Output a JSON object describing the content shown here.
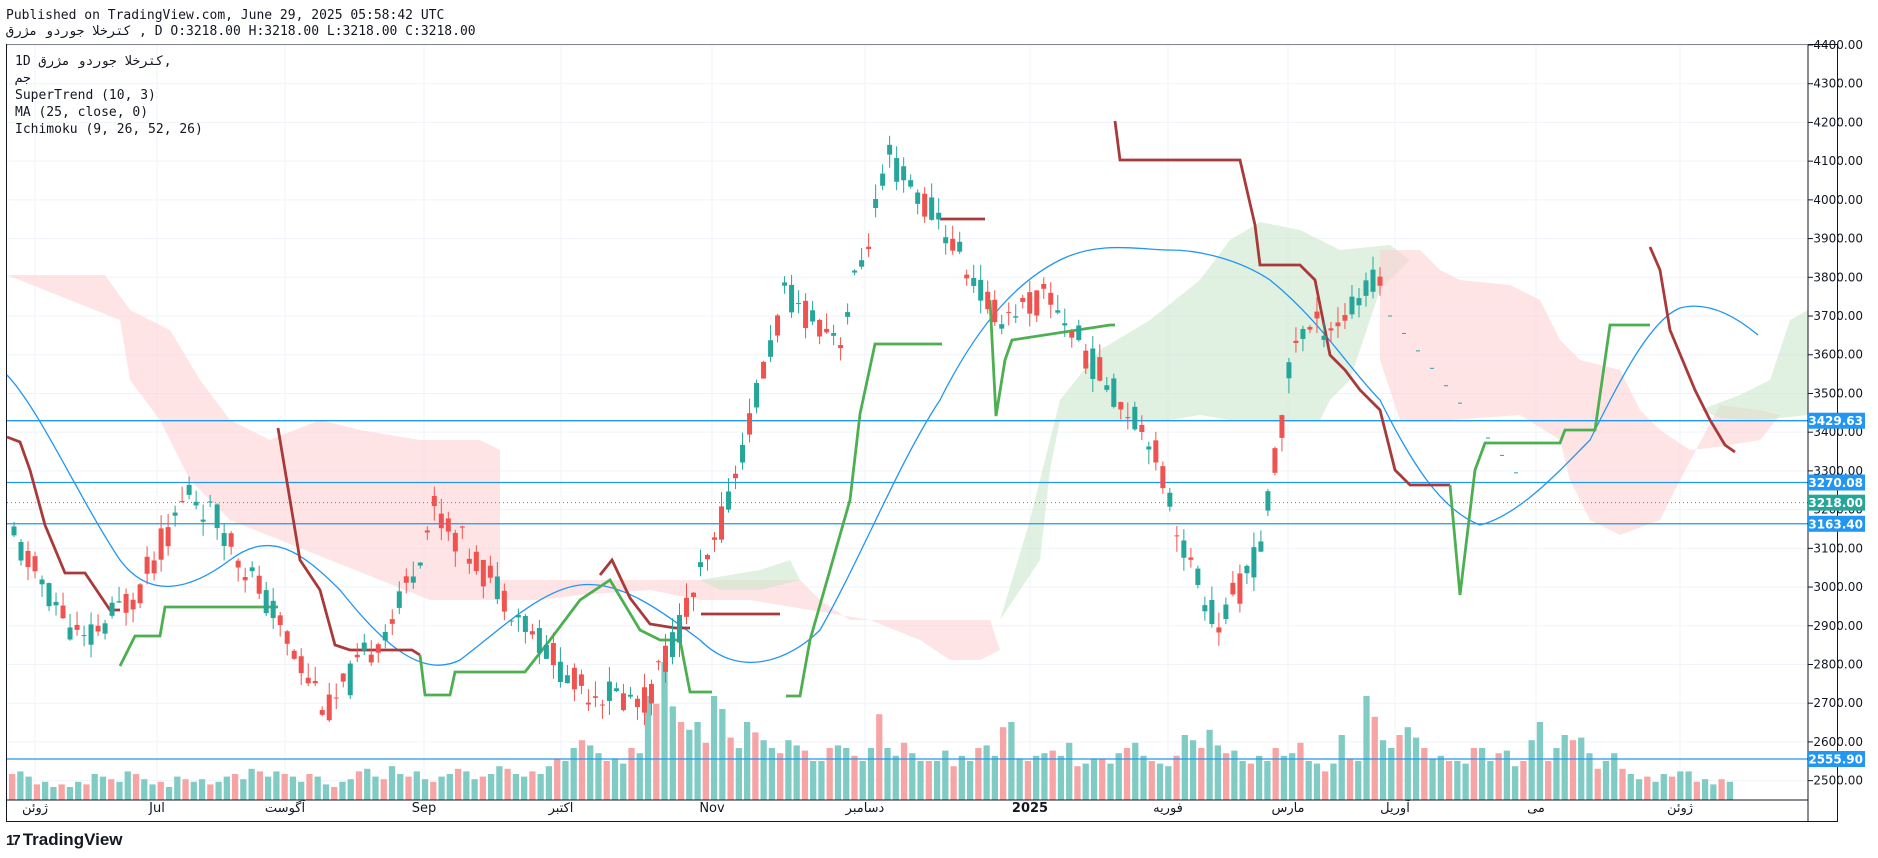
{
  "header": {
    "published": "Published on TradingView.com, June 29, 2025 05:58:42 UTC",
    "symbol_line": "کترخلا  جوردو  مژرق , D O:3218.00 H:3218.00 L:3218.00 C:3218.00"
  },
  "legend": {
    "symbol": "1D  کترخلا  جوردو  مژرق,",
    "symbol_sub": "جم",
    "indicators": [
      "SuperTrend (10, 3)",
      "MA (25, close, 0)",
      "Ichimoku (9, 26, 52, 26)"
    ]
  },
  "footer": {
    "brand": "TradingView"
  },
  "colors": {
    "up": "#26a69a",
    "down": "#ef5350",
    "ma": "#2196f3",
    "supertrend_up": "#4caf50",
    "supertrend_down": "#a93a3a",
    "cloud_bull": "#c8e6c9",
    "cloud_bear": "#ffcdd2",
    "hline": "#2196f3",
    "vol_up": "#80cbc4",
    "vol_down": "#f7a4a4"
  },
  "chart_data": {
    "type": "candlestick",
    "y_axis": {
      "range": [
        2450,
        4400
      ],
      "ticks": [
        "4400.00",
        "4300.00",
        "4200.00",
        "4100.00",
        "4000.00",
        "3900.00",
        "3800.00",
        "3700.00",
        "3600.00",
        "3500.00",
        "3400.00",
        "3300.00",
        "3200.00",
        "3100.00",
        "3000.00",
        "2900.00",
        "2800.00",
        "2700.00",
        "2600.00",
        "2500.00"
      ]
    },
    "x_axis": {
      "labels": [
        "ژوئن",
        "Jul",
        "آگوست",
        "Sep",
        "اکتبر",
        "Nov",
        "دسامبر",
        "2025",
        "فوریه",
        "مارس",
        "آوریل",
        "می",
        "ژوئن"
      ]
    },
    "price_labels": [
      {
        "value": "3429.63",
        "color": "#2196f3"
      },
      {
        "value": "3270.08",
        "color": "#2196f3"
      },
      {
        "value": "3218.00",
        "color": "#26a69a"
      },
      {
        "value": "3163.40",
        "color": "#2196f3"
      },
      {
        "value": "2555.90",
        "color": "#2196f3"
      }
    ],
    "horizontal_lines": [
      3429.63,
      3270.08,
      3163.4,
      2555.9
    ],
    "last_close": 3218.0,
    "candles": [
      {
        "o": 3070,
        "h": 3150,
        "l": 3020,
        "c": 3130
      },
      {
        "o": 3120,
        "h": 3140,
        "l": 3080,
        "c": 3100
      },
      {
        "o": 3100,
        "h": 3120,
        "l": 2990,
        "c": 3010
      },
      {
        "o": 3010,
        "h": 3030,
        "l": 2960,
        "c": 2990
      },
      {
        "o": 2990,
        "h": 3000,
        "l": 2870,
        "c": 2900
      },
      {
        "o": 2900,
        "h": 2920,
        "l": 2870,
        "c": 2890
      },
      {
        "o": 2890,
        "h": 2980,
        "l": 2870,
        "c": 2960
      },
      {
        "o": 2960,
        "h": 2980,
        "l": 2890,
        "c": 2900
      },
      {
        "o": 2900,
        "h": 2920,
        "l": 2840,
        "c": 2860
      },
      {
        "o": 2860,
        "h": 2870,
        "l": 2820,
        "c": 2830
      },
      {
        "o": 2830,
        "h": 2830,
        "l": 2800,
        "c": 2810
      },
      {
        "o": 2810,
        "h": 2810,
        "l": 2790,
        "c": 2800
      },
      {
        "o": 2800,
        "h": 2800,
        "l": 2790,
        "c": 2795
      },
      {
        "o": 2860,
        "h": 2960,
        "l": 2840,
        "c": 2940
      },
      {
        "o": 2940,
        "h": 2990,
        "l": 2920,
        "c": 2980
      },
      {
        "o": 2980,
        "h": 3020,
        "l": 2960,
        "c": 3010
      },
      {
        "o": 3010,
        "h": 3140,
        "l": 2900,
        "c": 3120
      },
      {
        "o": 3120,
        "h": 3140,
        "l": 3030,
        "c": 3050
      },
      {
        "o": 3050,
        "h": 3100,
        "l": 3020,
        "c": 3080
      },
      {
        "o": 3180,
        "h": 3300,
        "l": 3150,
        "c": 3270
      },
      {
        "o": 3270,
        "h": 3340,
        "l": 3200,
        "c": 3240
      },
      {
        "o": 3240,
        "h": 3320,
        "l": 3200,
        "c": 3220
      },
      {
        "o": 3150,
        "h": 3230,
        "l": 3100,
        "c": 3110
      },
      {
        "o": 3110,
        "h": 3160,
        "l": 3000,
        "c": 3020
      },
      {
        "o": 3100,
        "h": 3220,
        "l": 3080,
        "c": 3180
      },
      {
        "o": 3180,
        "h": 3300,
        "l": 3160,
        "c": 3280
      },
      {
        "o": 3280,
        "h": 3330,
        "l": 3170,
        "c": 3200
      },
      {
        "o": 3200,
        "h": 3290,
        "l": 3150,
        "c": 3230
      },
      {
        "o": 3230,
        "h": 3300,
        "l": 3150,
        "c": 3180
      },
      {
        "o": 3260,
        "h": 3300,
        "l": 3160,
        "c": 3170
      },
      {
        "o": 3170,
        "h": 3250,
        "l": 3150,
        "c": 3200
      },
      {
        "o": 3200,
        "h": 3280,
        "l": 3180,
        "c": 3260
      },
      {
        "o": 3260,
        "h": 3270,
        "l": 3120,
        "c": 3130
      },
      {
        "o": 3130,
        "h": 3180,
        "l": 3080,
        "c": 3110
      },
      {
        "o": 3110,
        "h": 3140,
        "l": 3050,
        "c": 3080
      },
      {
        "o": 3080,
        "h": 3120,
        "l": 2920,
        "c": 2940
      }
    ],
    "candles_window_note": "partial",
    "volume_scale_max": 1
  }
}
